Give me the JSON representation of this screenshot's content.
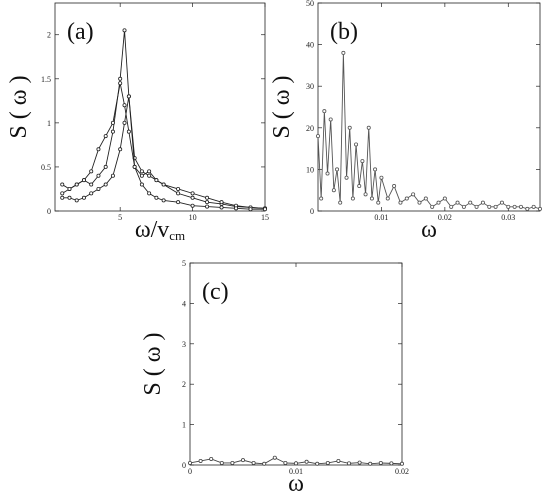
{
  "chart_data": [
    {
      "type": "line",
      "title": "(a)",
      "ylabel": "S ( ω )",
      "xlabel": "ω/v",
      "xlabel_sub": "cm",
      "xlim": [
        0.5,
        15
      ],
      "ylim": [
        0,
        2.36
      ],
      "xticks": [
        5,
        10,
        15
      ],
      "yticks": [
        0,
        0.5,
        1,
        1.5,
        2
      ],
      "x": [
        1,
        1.5,
        2,
        2.5,
        3,
        3.5,
        4,
        4.5,
        5,
        5.3,
        5.6,
        6,
        6.5,
        7,
        7.5,
        8,
        9,
        10,
        11,
        12,
        13,
        14,
        15
      ],
      "series": [
        {
          "color": "#222",
          "values": [
            0.3,
            0.25,
            0.3,
            0.35,
            0.3,
            0.4,
            0.5,
            0.9,
            1.5,
            2.05,
            1.3,
            0.6,
            0.45,
            0.4,
            0.35,
            0.3,
            0.2,
            0.15,
            0.1,
            0.08,
            0.05,
            0.04,
            0.03
          ]
        },
        {
          "color": "#222",
          "values": [
            0.2,
            0.25,
            0.3,
            0.35,
            0.45,
            0.7,
            0.85,
            1.0,
            1.45,
            1.2,
            0.9,
            0.5,
            0.4,
            0.45,
            0.35,
            0.3,
            0.25,
            0.2,
            0.15,
            0.1,
            0.06,
            0.04,
            0.03
          ]
        },
        {
          "color": "#222",
          "values": [
            0.15,
            0.15,
            0.12,
            0.15,
            0.2,
            0.25,
            0.3,
            0.4,
            0.7,
            1.0,
            1.3,
            0.5,
            0.3,
            0.2,
            0.15,
            0.12,
            0.1,
            0.06,
            0.05,
            0.04,
            0.03,
            0.02,
            0.02
          ]
        }
      ]
    },
    {
      "type": "line",
      "title": "(b)",
      "ylabel": "S ( ω )",
      "xlabel": "ω",
      "xlim": [
        0,
        0.035
      ],
      "ylim": [
        0,
        50
      ],
      "xticks": [
        0.01,
        0.02,
        0.03
      ],
      "yticks": [
        0,
        10,
        20,
        30,
        40,
        50
      ],
      "x": [
        0,
        0.0005,
        0.001,
        0.0015,
        0.002,
        0.0025,
        0.003,
        0.0035,
        0.004,
        0.0045,
        0.005,
        0.0055,
        0.006,
        0.0065,
        0.007,
        0.0075,
        0.008,
        0.0085,
        0.009,
        0.0095,
        0.01,
        0.011,
        0.012,
        0.013,
        0.014,
        0.015,
        0.016,
        0.017,
        0.018,
        0.019,
        0.02,
        0.021,
        0.022,
        0.023,
        0.024,
        0.025,
        0.026,
        0.027,
        0.028,
        0.029,
        0.03,
        0.031,
        0.032,
        0.033,
        0.034,
        0.035
      ],
      "series": [
        {
          "color": "#555",
          "values": [
            18,
            3,
            24,
            9,
            22,
            5,
            10,
            2,
            38,
            8,
            20,
            3,
            16,
            6,
            12,
            4,
            20,
            3,
            10,
            2,
            8,
            3,
            6,
            2,
            3,
            4,
            2,
            3,
            1,
            2,
            3,
            1,
            2,
            1,
            2,
            1,
            2,
            1,
            1,
            2,
            1,
            1,
            1,
            0.5,
            1,
            0.5
          ]
        }
      ]
    },
    {
      "type": "line",
      "title": "(c)",
      "ylabel": "S ( ω )",
      "xlabel": "ω",
      "xlim": [
        0,
        0.02
      ],
      "ylim": [
        0,
        5
      ],
      "xticks": [
        0,
        0.01,
        0.02
      ],
      "yticks": [
        0,
        1,
        2,
        3,
        4,
        5
      ],
      "x": [
        0,
        0.001,
        0.002,
        0.003,
        0.004,
        0.005,
        0.006,
        0.007,
        0.008,
        0.009,
        0.01,
        0.011,
        0.012,
        0.013,
        0.014,
        0.015,
        0.016,
        0.017,
        0.018,
        0.019,
        0.02
      ],
      "series": [
        {
          "color": "#444",
          "values": [
            0.05,
            0.1,
            0.15,
            0.05,
            0.05,
            0.12,
            0.05,
            0.03,
            0.18,
            0.05,
            0.04,
            0.08,
            0.03,
            0.05,
            0.1,
            0.04,
            0.06,
            0.03,
            0.05,
            0.04,
            0.03
          ]
        }
      ]
    }
  ]
}
